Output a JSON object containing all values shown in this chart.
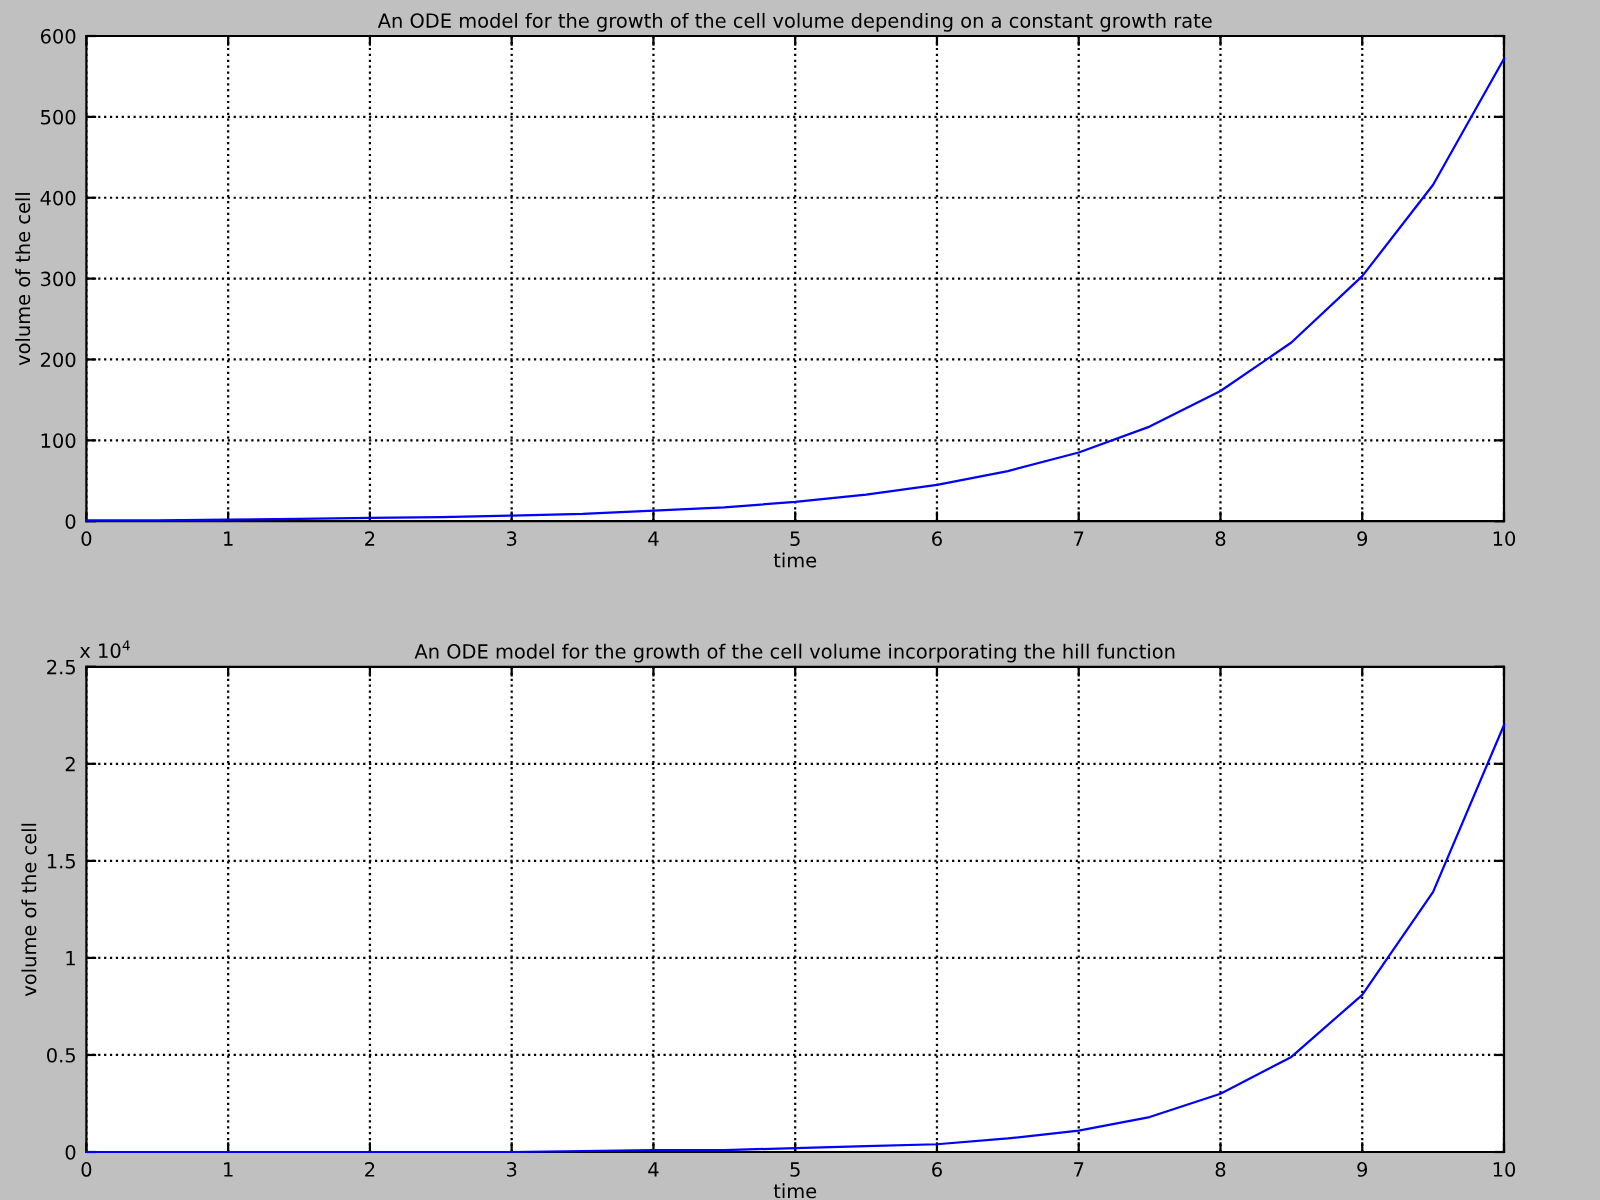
{
  "chart_data": [
    {
      "type": "line",
      "title": "An ODE model for the growth of the cell volume depending on a constant growth rate",
      "xlabel": "time",
      "ylabel": "volume of the cell",
      "series": [
        {
          "color": "#0000ff",
          "x": [
            0,
            0.5,
            1,
            1.5,
            2,
            2.5,
            3,
            3.5,
            4,
            4.5,
            5,
            5.5,
            6,
            6.5,
            7,
            7.5,
            8,
            8.5,
            9,
            9.5,
            10
          ],
          "values": [
            1,
            1,
            2,
            3,
            4,
            5,
            7,
            9,
            13,
            17,
            24,
            33,
            45,
            62,
            85,
            117,
            161,
            221,
            303,
            416,
            572
          ]
        }
      ],
      "xlim": [
        0,
        10
      ],
      "xticks": [
        0,
        1,
        2,
        3,
        4,
        5,
        6,
        7,
        8,
        9,
        10
      ],
      "ylim": [
        0,
        600
      ],
      "yticks": [
        0,
        100,
        200,
        300,
        400,
        500,
        600
      ],
      "grid": true,
      "line_style": "solid",
      "marker": "none"
    },
    {
      "type": "line",
      "title": "An ODE model for the growth of the cell volume incorporating the hill function",
      "xlabel": "time",
      "ylabel": "volume of the cell",
      "annotations": [
        "x 10$^{4}$"
      ],
      "series": [
        {
          "color": "#0000ff",
          "x": [
            0,
            1,
            2,
            3,
            4,
            4.5,
            5,
            5.5,
            6,
            6.5,
            7,
            7.5,
            8,
            8.5,
            9,
            9.5,
            10
          ],
          "values": [
            0,
            0,
            0,
            0,
            0.01,
            0.01,
            0.02,
            0.03,
            0.04,
            0.07,
            0.11,
            0.18,
            0.3,
            0.49,
            0.81,
            1.34,
            2.2
          ]
        }
      ],
      "xlim": [
        0,
        10
      ],
      "xticks": [
        0,
        1,
        2,
        3,
        4,
        5,
        6,
        7,
        8,
        9,
        10
      ],
      "ylim": [
        0,
        2.5
      ],
      "yticks": [
        0,
        0.5,
        1,
        1.5,
        2,
        2.5
      ],
      "grid": true,
      "line_style": "solid",
      "marker": "none"
    }
  ]
}
